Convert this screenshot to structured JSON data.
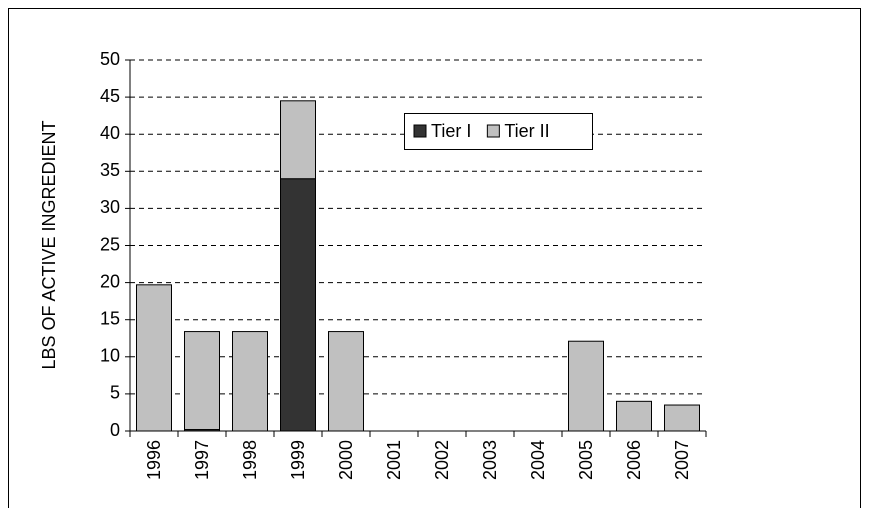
{
  "chart_data": {
    "type": "stacked_bar",
    "y_label": "LBS OF ACTIVE INGREDIENT",
    "categories": [
      "1996",
      "1997",
      "1998",
      "1999",
      "2000",
      "2001",
      "2002",
      "2003",
      "2004",
      "2005",
      "2006",
      "2007"
    ],
    "series": [
      {
        "name": "Tier I",
        "color": "#333333",
        "values": [
          0,
          0.2,
          0,
          34.0,
          0,
          0,
          0,
          0,
          0,
          0,
          0,
          0
        ]
      },
      {
        "name": "Tier II",
        "color": "#c0c0c0",
        "values": [
          19.7,
          13.2,
          13.4,
          10.5,
          13.4,
          0,
          0,
          0,
          0,
          12.1,
          4.0,
          3.5
        ]
      }
    ],
    "ylim": [
      0,
      50
    ],
    "yticks": [
      0,
      5,
      10,
      15,
      20,
      25,
      30,
      35,
      40,
      45,
      50
    ],
    "grid": true
  }
}
